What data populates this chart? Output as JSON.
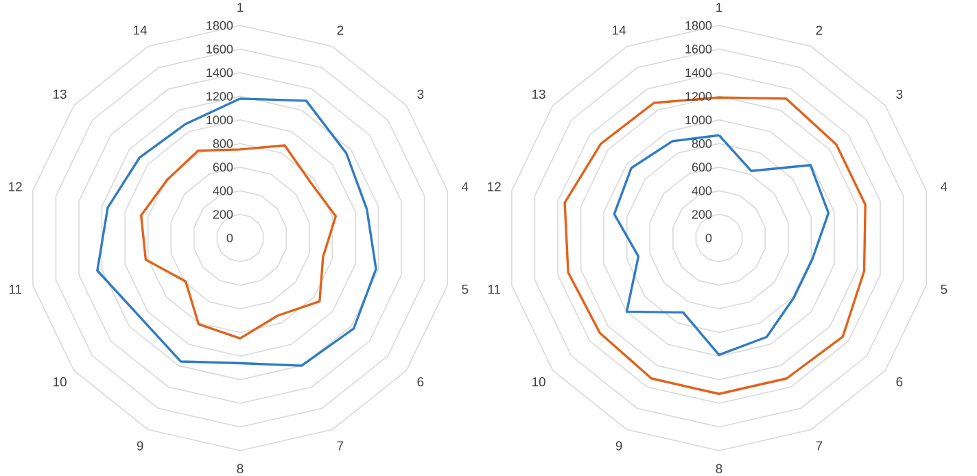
{
  "chart_data": [
    {
      "type": "radar",
      "categories": [
        "1",
        "2",
        "3",
        "4",
        "5",
        "6",
        "7",
        "8",
        "9",
        "10",
        "11",
        "12",
        "13",
        "14"
      ],
      "ylim": [
        0,
        1800
      ],
      "yticks": [
        0,
        200,
        400,
        600,
        800,
        1000,
        1200,
        1400,
        1600,
        1800
      ],
      "grid": true,
      "series": [
        {
          "color": "#2f7cc4",
          "values": [
            1180,
            1290,
            1150,
            1100,
            1180,
            1230,
            1200,
            1060,
            1160,
            1080,
            1240,
            1150,
            1090,
            1070
          ]
        },
        {
          "color": "#e2621b",
          "values": [
            750,
            870,
            760,
            830,
            720,
            860,
            730,
            850,
            810,
            590,
            820,
            860,
            790,
            820
          ]
        }
      ]
    },
    {
      "type": "radar",
      "categories": [
        "1",
        "2",
        "3",
        "4",
        "5",
        "6",
        "7",
        "8",
        "9",
        "10",
        "11",
        "12",
        "13",
        "14"
      ],
      "ylim": [
        0,
        1800
      ],
      "yticks": [
        0,
        200,
        400,
        600,
        800,
        1000,
        1200,
        1400,
        1600,
        1800
      ],
      "grid": true,
      "series": [
        {
          "color": "#2f7cc4",
          "values": [
            870,
            630,
            990,
            950,
            810,
            810,
            930,
            990,
            700,
            1000,
            700,
            910,
            950,
            910
          ]
        },
        {
          "color": "#e2621b",
          "values": [
            1190,
            1310,
            1270,
            1270,
            1260,
            1340,
            1320,
            1320,
            1320,
            1290,
            1310,
            1340,
            1280,
            1270
          ]
        }
      ]
    }
  ]
}
